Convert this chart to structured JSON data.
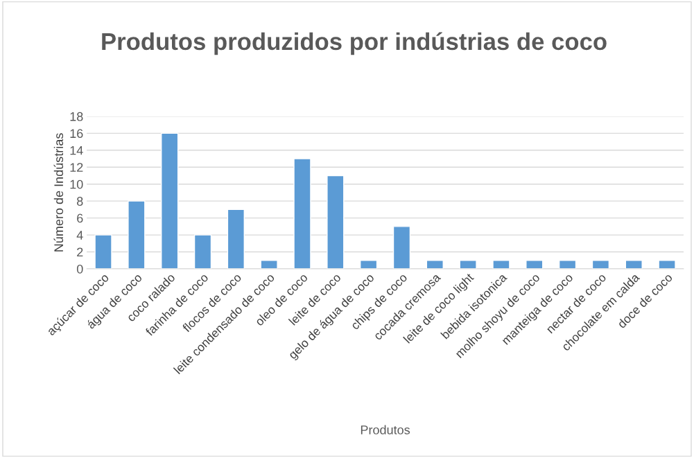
{
  "chart_data": {
    "type": "bar",
    "title": "Produtos produzidos por indústrias de coco",
    "xlabel": "Produtos",
    "ylabel": "Número de Indústrias",
    "categories": [
      "açúcar de coco",
      "água de coco",
      "coco ralado",
      "farinha de coco",
      "flocos de coco",
      "leite condensado de coco",
      "oleo de coco",
      "leite de coco",
      "gelo de água de coco",
      "chips de coco",
      "cocada cremosa",
      "leite de coco light",
      "bebida isotonica",
      "molho shoyu de coco",
      "manteiga de coco",
      "nectar de coco",
      "chocolate em calda",
      "doce de coco"
    ],
    "values": [
      4,
      8,
      16,
      4,
      7,
      1,
      13,
      11,
      1,
      5,
      1,
      1,
      1,
      1,
      1,
      1,
      1,
      1
    ],
    "color": "#5b9bd5",
    "ylim": [
      0,
      18
    ],
    "yticks": [
      0,
      2,
      4,
      6,
      8,
      10,
      12,
      14,
      16,
      18
    ],
    "grid": "y",
    "legend": false
  }
}
